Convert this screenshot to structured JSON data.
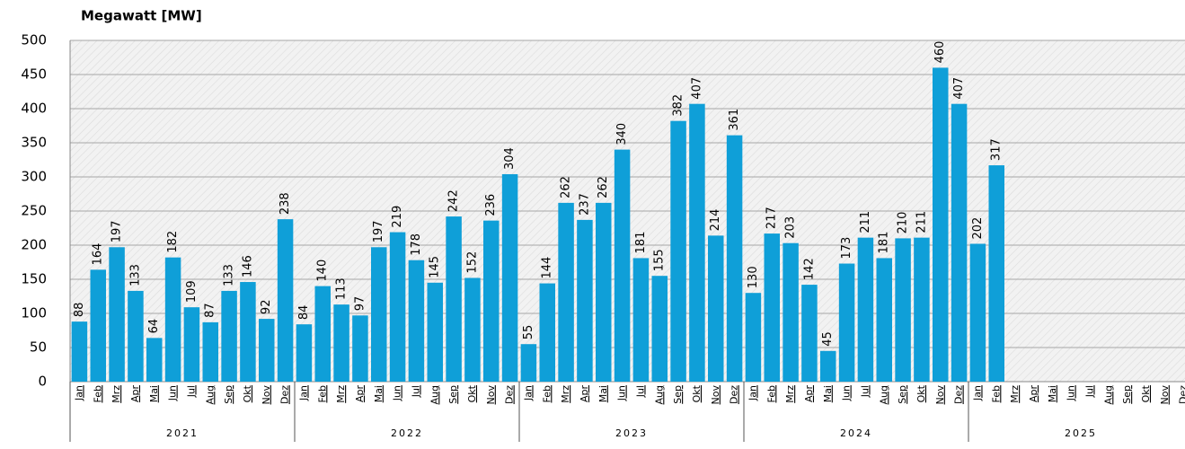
{
  "chart_data": {
    "type": "bar",
    "y_axis_label": "Megawatt [MW]",
    "categories": [
      "Jan",
      "Feb",
      "Mrz",
      "Apr",
      "Mai",
      "Jun",
      "Jul",
      "Aug",
      "Sep",
      "Okt",
      "Nov",
      "Dez",
      "Jan",
      "Feb",
      "Mrz",
      "Apr",
      "Mai",
      "Jun",
      "Jul",
      "Aug",
      "Sep",
      "Okt",
      "Nov",
      "Dez",
      "Jan",
      "Feb",
      "Mrz",
      "Apr",
      "Mai",
      "Jun",
      "Jul",
      "Aug",
      "Sep",
      "Okt",
      "Nov",
      "Dez",
      "Jan",
      "Feb",
      "Mrz",
      "Apr",
      "Mai",
      "Jun",
      "Jul",
      "Aug",
      "Sep",
      "Okt",
      "Nov",
      "Dez",
      "Jan",
      "Feb",
      "Mrz",
      "Apr",
      "Mai",
      "Jun",
      "Jul",
      "Aug",
      "Sep",
      "Okt",
      "Nov",
      "Dez"
    ],
    "groups": [
      "2021",
      "2022",
      "2023",
      "2024",
      "2025"
    ],
    "values": [
      88,
      164,
      197,
      133,
      64,
      182,
      109,
      87,
      133,
      146,
      92,
      238,
      84,
      140,
      113,
      97,
      197,
      219,
      178,
      145,
      242,
      152,
      236,
      304,
      55,
      144,
      262,
      237,
      262,
      340,
      181,
      155,
      382,
      407,
      214,
      361,
      130,
      217,
      203,
      142,
      45,
      173,
      211,
      181,
      210,
      211,
      460,
      407,
      202,
      317,
      null,
      null,
      null,
      null,
      null,
      null,
      null,
      null,
      null,
      null
    ],
    "color": "#0f9fd8",
    "ylim": [
      0,
      500
    ],
    "yticks": [
      0,
      50,
      100,
      150,
      200,
      250,
      300,
      350,
      400,
      450,
      500
    ],
    "grid": true
  }
}
